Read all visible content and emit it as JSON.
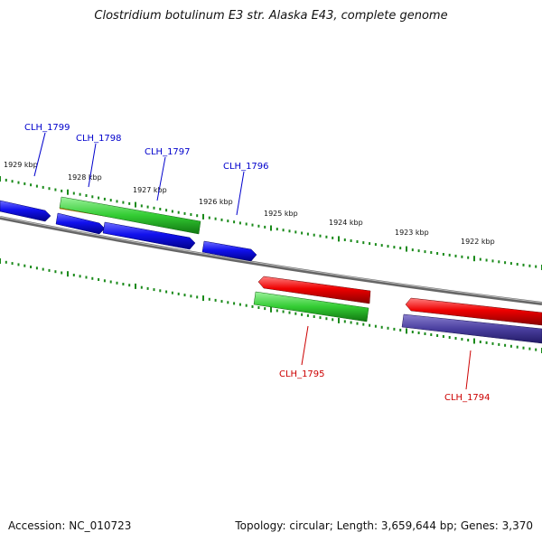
{
  "title": "Clostridium botulinum E3 str. Alaska E43, complete genome",
  "footer": {
    "accession": "Accession: NC_010723",
    "summary": "Topology: circular; Length: 3,659,644 bp; Genes: 3,370"
  },
  "ticks": [
    "1929 kbp",
    "1928 kbp",
    "1927 kbp",
    "1926 kbp",
    "1925 kbp",
    "1924 kbp",
    "1923 kbp",
    "1922 kbp"
  ],
  "genes": [
    {
      "label": "CLH_1799",
      "strand": "forward",
      "color": "#0000cc"
    },
    {
      "label": "CLH_1798",
      "strand": "forward",
      "color": "#0000cc"
    },
    {
      "label": "CLH_1797",
      "strand": "forward",
      "color": "#0000cc"
    },
    {
      "label": "CLH_1796",
      "strand": "forward",
      "color": "#0000cc"
    },
    {
      "label": "CLH_1795",
      "strand": "reverse",
      "color": "#cc0000"
    },
    {
      "label": "CLH_1794",
      "strand": "reverse",
      "color": "#cc0000"
    }
  ],
  "colors": {
    "forward_gene": "#1a1aff",
    "reverse_gene": "#ff1a1a",
    "rna_green": "#33cc33",
    "orange": "#ff9900",
    "purple": "#4a3f9f",
    "backbone": "#777777",
    "tick": "#1a8a1a"
  }
}
